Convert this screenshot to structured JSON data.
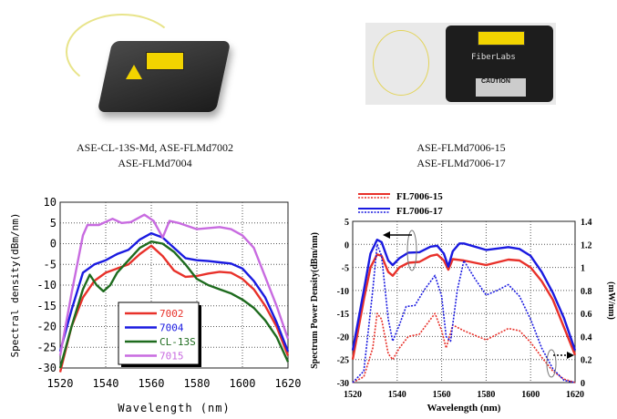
{
  "products": [
    {
      "caption_lines": [
        "ASE-CL-13S-Md, ASE-FLMd7002",
        "ASE-FLMd7004"
      ]
    },
    {
      "caption_lines": [
        "ASE-FLMd7006-15",
        "ASE-FLMd7006-17"
      ],
      "photo_text": {
        "brand": "FiberLabs",
        "caution": "CAUTION"
      }
    }
  ],
  "chart_data": [
    {
      "type": "line",
      "title": "",
      "xlabel": "Wavelength (nm)",
      "ylabel": "Spectral density(dBm/nm)",
      "xlim": [
        1520,
        1620
      ],
      "ylim": [
        -30,
        10
      ],
      "xticks": [
        1520,
        1540,
        1560,
        1580,
        1600,
        1620
      ],
      "yticks": [
        10,
        5,
        0,
        -5,
        -10,
        -15,
        -20,
        -25,
        -30
      ],
      "grid": true,
      "legend_position": "bottom-center",
      "series": [
        {
          "name": "7002",
          "color": "#e8312a",
          "points": [
            [
              1520,
              -31
            ],
            [
              1525,
              -20
            ],
            [
              1530,
              -13
            ],
            [
              1535,
              -9
            ],
            [
              1540,
              -7
            ],
            [
              1545,
              -6
            ],
            [
              1550,
              -5
            ],
            [
              1555,
              -2.5
            ],
            [
              1560,
              -0.5
            ],
            [
              1565,
              -3
            ],
            [
              1570,
              -6.5
            ],
            [
              1575,
              -8
            ],
            [
              1580,
              -7.8
            ],
            [
              1585,
              -7.2
            ],
            [
              1590,
              -6.8
            ],
            [
              1595,
              -7
            ],
            [
              1600,
              -8.5
            ],
            [
              1605,
              -11
            ],
            [
              1610,
              -15
            ],
            [
              1615,
              -20
            ],
            [
              1620,
              -27
            ]
          ]
        },
        {
          "name": "7004",
          "color": "#1a1ae0",
          "points": [
            [
              1520,
              -26
            ],
            [
              1525,
              -16
            ],
            [
              1530,
              -7
            ],
            [
              1535,
              -5
            ],
            [
              1540,
              -4
            ],
            [
              1545,
              -2.5
            ],
            [
              1550,
              -1.5
            ],
            [
              1555,
              1
            ],
            [
              1560,
              2.5
            ],
            [
              1565,
              1.5
            ],
            [
              1570,
              -1
            ],
            [
              1575,
              -3.5
            ],
            [
              1580,
              -4
            ],
            [
              1585,
              -4.2
            ],
            [
              1590,
              -4.5
            ],
            [
              1595,
              -4.8
            ],
            [
              1600,
              -6
            ],
            [
              1605,
              -9
            ],
            [
              1610,
              -13
            ],
            [
              1615,
              -19
            ],
            [
              1620,
              -26
            ]
          ]
        },
        {
          "name": "CL-13S",
          "color": "#1e6b1e",
          "points": [
            [
              1520,
              -30
            ],
            [
              1525,
              -20
            ],
            [
              1530,
              -11
            ],
            [
              1533,
              -7.5
            ],
            [
              1536,
              -10
            ],
            [
              1539,
              -11.5
            ],
            [
              1542,
              -10
            ],
            [
              1545,
              -7
            ],
            [
              1550,
              -4
            ],
            [
              1555,
              -1
            ],
            [
              1560,
              0.5
            ],
            [
              1565,
              0
            ],
            [
              1570,
              -2
            ],
            [
              1575,
              -5
            ],
            [
              1580,
              -8.5
            ],
            [
              1585,
              -10
            ],
            [
              1590,
              -11
            ],
            [
              1595,
              -12
            ],
            [
              1600,
              -13.5
            ],
            [
              1605,
              -15.5
            ],
            [
              1610,
              -18.5
            ],
            [
              1615,
              -22.5
            ],
            [
              1620,
              -28.5
            ]
          ]
        },
        {
          "name": "7015",
          "color": "#c86be0",
          "points": [
            [
              1520,
              -27
            ],
            [
              1525,
              -12
            ],
            [
              1530,
              2
            ],
            [
              1532,
              4.5
            ],
            [
              1537,
              4.5
            ],
            [
              1543,
              6
            ],
            [
              1547,
              5
            ],
            [
              1551,
              5.2
            ],
            [
              1557,
              7
            ],
            [
              1561,
              5.5
            ],
            [
              1565,
              1.5
            ],
            [
              1568,
              5.5
            ],
            [
              1572,
              5
            ],
            [
              1580,
              3.5
            ],
            [
              1590,
              4
            ],
            [
              1595,
              3.5
            ],
            [
              1600,
              2
            ],
            [
              1605,
              -1
            ],
            [
              1610,
              -8
            ],
            [
              1615,
              -15
            ],
            [
              1620,
              -23
            ]
          ]
        }
      ]
    },
    {
      "type": "line",
      "title": "",
      "xlabel": "Wavelength (nm)",
      "ylabel": "Spectrum Power Density(dBm/nm)",
      "y2label": "(mW/nm)",
      "xlim": [
        1520,
        1620
      ],
      "ylim": [
        -30,
        5
      ],
      "y2lim": [
        0,
        1.4
      ],
      "xticks": [
        1520,
        1540,
        1560,
        1580,
        1600,
        1620
      ],
      "yticks": [
        5,
        0,
        -5,
        -10,
        -15,
        -20,
        -25,
        -30
      ],
      "y2ticks": [
        "1.4",
        "1.2",
        "1",
        "0.8",
        "0.6",
        "0.4",
        "0.2",
        "0"
      ],
      "grid": true,
      "legend_position": "top-left",
      "legend": [
        {
          "name": "FL7006-15",
          "color": "#e8312a"
        },
        {
          "name": "FL7006-17",
          "color": "#1a1ae0"
        }
      ],
      "series": [
        {
          "name": "FL7006-15 (dBm/nm)",
          "axis": "left",
          "style": "solid",
          "color": "#e8312a",
          "points": [
            [
              1520,
              -25
            ],
            [
              1525,
              -12
            ],
            [
              1528,
              -5
            ],
            [
              1531,
              -2.2
            ],
            [
              1533,
              -2.5
            ],
            [
              1536,
              -6
            ],
            [
              1538,
              -6.8
            ],
            [
              1541,
              -5
            ],
            [
              1545,
              -4
            ],
            [
              1550,
              -3.8
            ],
            [
              1555,
              -2.5
            ],
            [
              1558,
              -2.2
            ],
            [
              1561,
              -3.5
            ],
            [
              1563,
              -5.5
            ],
            [
              1565,
              -3.2
            ],
            [
              1570,
              -3.5
            ],
            [
              1580,
              -4.5
            ],
            [
              1590,
              -3.3
            ],
            [
              1595,
              -3.5
            ],
            [
              1600,
              -5
            ],
            [
              1605,
              -8
            ],
            [
              1610,
              -12
            ],
            [
              1615,
              -18
            ],
            [
              1620,
              -24
            ]
          ]
        },
        {
          "name": "FL7006-17 (dBm/nm)",
          "axis": "left",
          "style": "solid",
          "color": "#1a1ae0",
          "points": [
            [
              1520,
              -23
            ],
            [
              1525,
              -10
            ],
            [
              1528,
              -2
            ],
            [
              1531,
              1
            ],
            [
              1533,
              0.5
            ],
            [
              1536,
              -3.5
            ],
            [
              1538,
              -4.5
            ],
            [
              1541,
              -3
            ],
            [
              1545,
              -1.8
            ],
            [
              1550,
              -1.7
            ],
            [
              1555,
              -0.5
            ],
            [
              1558,
              -0.3
            ],
            [
              1561,
              -2
            ],
            [
              1563,
              -4.8
            ],
            [
              1565,
              -1.5
            ],
            [
              1568,
              0.2
            ],
            [
              1570,
              0.2
            ],
            [
              1580,
              -1.2
            ],
            [
              1590,
              -0.6
            ],
            [
              1595,
              -1
            ],
            [
              1600,
              -2.5
            ],
            [
              1605,
              -6
            ],
            [
              1610,
              -10.5
            ],
            [
              1615,
              -16
            ],
            [
              1620,
              -23
            ]
          ]
        },
        {
          "name": "FL7006-15 (mW/nm)",
          "axis": "right",
          "style": "dotted",
          "color": "#e8312a",
          "points": [
            [
              1520,
              0
            ],
            [
              1525,
              0.05
            ],
            [
              1529,
              0.3
            ],
            [
              1531,
              0.6
            ],
            [
              1533,
              0.55
            ],
            [
              1536,
              0.25
            ],
            [
              1538,
              0.2
            ],
            [
              1541,
              0.3
            ],
            [
              1545,
              0.4
            ],
            [
              1550,
              0.42
            ],
            [
              1555,
              0.55
            ],
            [
              1557,
              0.6
            ],
            [
              1560,
              0.45
            ],
            [
              1562,
              0.3
            ],
            [
              1565,
              0.5
            ],
            [
              1570,
              0.45
            ],
            [
              1580,
              0.37
            ],
            [
              1590,
              0.47
            ],
            [
              1595,
              0.45
            ],
            [
              1600,
              0.35
            ],
            [
              1605,
              0.22
            ],
            [
              1610,
              0.1
            ],
            [
              1615,
              0.03
            ],
            [
              1620,
              0
            ]
          ]
        },
        {
          "name": "FL7006-17 (mW/nm)",
          "axis": "right",
          "style": "dotted",
          "color": "#1a1ae0",
          "points": [
            [
              1520,
              0
            ],
            [
              1525,
              0.1
            ],
            [
              1529,
              0.8
            ],
            [
              1531,
              1.2
            ],
            [
              1533,
              1.1
            ],
            [
              1536,
              0.55
            ],
            [
              1538,
              0.36
            ],
            [
              1541,
              0.5
            ],
            [
              1544,
              0.66
            ],
            [
              1548,
              0.67
            ],
            [
              1552,
              0.8
            ],
            [
              1557,
              0.93
            ],
            [
              1560,
              0.75
            ],
            [
              1562,
              0.4
            ],
            [
              1564,
              0.36
            ],
            [
              1567,
              0.8
            ],
            [
              1570,
              1.06
            ],
            [
              1575,
              0.9
            ],
            [
              1580,
              0.76
            ],
            [
              1585,
              0.8
            ],
            [
              1590,
              0.85
            ],
            [
              1595,
              0.75
            ],
            [
              1600,
              0.55
            ],
            [
              1605,
              0.3
            ],
            [
              1610,
              0.12
            ],
            [
              1615,
              0.02
            ],
            [
              1620,
              0
            ]
          ]
        }
      ]
    }
  ]
}
